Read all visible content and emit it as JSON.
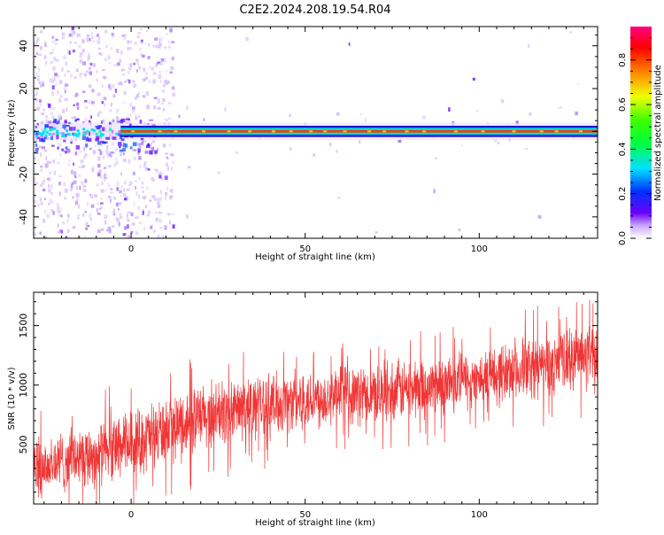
{
  "title": "C2E2.2024.208.19.54.R04",
  "chart_data": [
    {
      "type": "heatmap",
      "xlabel": "Height of straight line (km)",
      "ylabel": "Frequency (Hz)",
      "xlim": [
        -28,
        134
      ],
      "ylim": [
        -50,
        49
      ],
      "xticks": [
        0,
        50,
        100
      ],
      "yticks": [
        -40,
        -20,
        0,
        20,
        40
      ],
      "colorbar": {
        "label": "Normalized spectral amplitude",
        "range": [
          0,
          0.95
        ],
        "ticks": [
          "0.0",
          "0.2",
          "0.4",
          "0.6",
          "0.8"
        ]
      },
      "description_of_pattern": [
        "strong narrow band centered at 0 Hz",
        "scattered noise at heights below 10 km"
      ]
    },
    {
      "type": "line",
      "color": "#f03535",
      "xlabel": "Height of straight line (km)",
      "ylabel": "SNR (10 * v/v)",
      "xlim": [
        -28,
        134
      ],
      "ylim": [
        0,
        1780
      ],
      "xticks": [
        0,
        50,
        100
      ],
      "yticks": [
        500,
        1000,
        1500
      ],
      "trend_points": {
        "x": [
          -28,
          -10,
          0,
          10,
          25,
          50,
          75,
          100,
          115,
          134
        ],
        "center": [
          300,
          420,
          500,
          620,
          760,
          880,
          950,
          1050,
          1150,
          1250
        ],
        "spread": [
          300,
          320,
          330,
          340,
          330,
          300,
          300,
          300,
          320,
          340
        ]
      }
    }
  ]
}
